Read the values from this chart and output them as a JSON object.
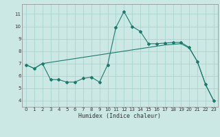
{
  "xlabel": "Humidex (Indice chaleur)",
  "bg_color": "#cce8e4",
  "line_color": "#1a7a6e",
  "grid_color": "#aad4ce",
  "xlim": [
    -0.5,
    23.5
  ],
  "ylim": [
    3.5,
    11.8
  ],
  "xticks": [
    0,
    1,
    2,
    3,
    4,
    5,
    6,
    7,
    8,
    9,
    10,
    11,
    12,
    13,
    14,
    15,
    16,
    17,
    18,
    19,
    20,
    21,
    22,
    23
  ],
  "yticks": [
    4,
    5,
    6,
    7,
    8,
    9,
    10,
    11
  ],
  "series1_x": [
    0,
    1,
    2,
    3,
    4,
    5,
    6,
    7,
    8,
    9,
    10,
    11,
    12,
    13,
    14,
    15,
    16,
    17,
    18,
    19,
    20,
    21,
    22,
    23
  ],
  "series1_y": [
    6.9,
    6.6,
    7.0,
    7.1,
    7.2,
    7.3,
    7.4,
    7.5,
    7.6,
    7.7,
    7.8,
    7.9,
    8.0,
    8.1,
    8.2,
    8.3,
    8.4,
    8.5,
    8.55,
    8.6,
    8.25,
    7.15,
    5.3,
    4.0
  ],
  "series2_x": [
    0,
    1,
    2,
    3,
    4,
    5,
    6,
    7,
    8,
    9,
    10,
    11,
    12,
    13,
    14,
    15,
    16,
    17,
    18,
    19,
    20,
    21,
    22,
    23
  ],
  "series2_y": [
    6.9,
    6.6,
    7.0,
    5.7,
    5.7,
    5.5,
    5.5,
    5.8,
    5.9,
    5.5,
    6.9,
    9.9,
    11.2,
    10.0,
    9.6,
    8.6,
    8.6,
    8.65,
    8.7,
    8.7,
    8.3,
    7.15,
    5.3,
    4.0
  ],
  "marker": "D",
  "markersize": 2.0,
  "xlabel_fontsize": 6,
  "tick_fontsize": 5
}
